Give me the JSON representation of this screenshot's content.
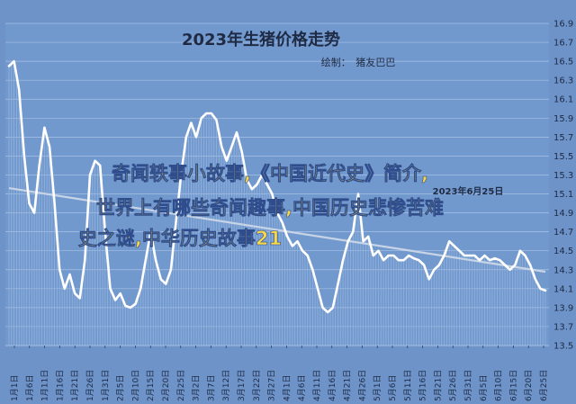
{
  "chart_data": {
    "type": "line",
    "title": "2023年生猪价格走势",
    "credit": "绘制：　猪友巴巴",
    "ylim": [
      13.5,
      16.9
    ],
    "yticks": [
      13.5,
      13.7,
      13.9,
      14.1,
      14.3,
      14.5,
      14.7,
      14.9,
      15.1,
      15.3,
      15.5,
      15.7,
      15.9,
      16.1,
      16.3,
      16.5,
      16.7,
      16.9
    ],
    "xtick_labels": [
      "1月1日",
      "1月6日",
      "1月11日",
      "1月16日",
      "1月21日",
      "1月26日",
      "1月31日",
      "2月5日",
      "2月10日",
      "2月15日",
      "2月20日",
      "2月25日",
      "3月2日",
      "3月7日",
      "3月12日",
      "3月17日",
      "3月22日",
      "3月27日",
      "4月1日",
      "4月6日",
      "4月11日",
      "4月16日",
      "4月21日",
      "4月26日",
      "5月1日",
      "5月6日",
      "5月11日",
      "5月16日",
      "5月21日",
      "5月26日",
      "5月31日",
      "6月5日",
      "6月10日",
      "6月15日",
      "6月20日",
      "6月25日"
    ],
    "grid": true,
    "trendline": true,
    "series": [
      {
        "values": [
          16.45,
          16.5,
          16.2,
          15.5,
          15.0,
          14.9,
          15.4,
          15.8,
          15.6,
          15.0,
          14.3,
          14.1,
          14.25,
          14.05,
          14.0,
          14.4,
          15.3,
          15.45,
          15.4,
          14.7,
          14.1,
          13.98,
          14.05,
          13.92,
          13.9,
          13.94,
          14.1,
          14.4,
          14.7,
          14.4,
          14.2,
          14.15,
          14.3,
          14.8,
          15.3,
          15.7,
          15.85,
          15.7,
          15.9,
          15.95,
          15.95,
          15.88,
          15.6,
          15.45,
          15.6,
          15.75,
          15.55,
          15.25,
          15.15,
          15.2,
          15.3,
          15.2,
          15.1,
          14.9,
          14.8,
          14.65,
          14.55,
          14.6,
          14.5,
          14.45,
          14.3,
          14.1,
          13.9,
          13.85,
          13.9,
          14.15,
          14.4,
          14.6,
          14.7,
          15.1,
          14.6,
          14.65,
          14.45,
          14.5,
          14.4,
          14.45,
          14.45,
          14.4,
          14.4,
          14.45,
          14.42,
          14.4,
          14.35,
          14.2,
          14.3,
          14.35,
          14.45,
          14.6,
          14.55,
          14.5,
          14.45,
          14.45,
          14.45,
          14.4,
          14.45,
          14.4,
          14.42,
          14.4,
          14.35,
          14.3,
          14.35,
          14.5,
          14.45,
          14.35,
          14.2,
          14.1,
          14.08
        ]
      }
    ],
    "annotation": "2023年6月25日"
  },
  "watermark": {
    "line1": "奇闻轶事小故事,《中国近代史》简介,",
    "line2": "世界上有哪些奇闻趣事,中国历史悲惨苦难",
    "line3": "史之谜,中华历史故事21"
  },
  "colors": {
    "background": "#6d93c9",
    "plot_bg": "#7299cd",
    "grid": "#a9c2e6",
    "line": "#ffffff",
    "trend": "#c7d4e6",
    "text": "#1f2a44",
    "watermark": "#f7d84a"
  }
}
